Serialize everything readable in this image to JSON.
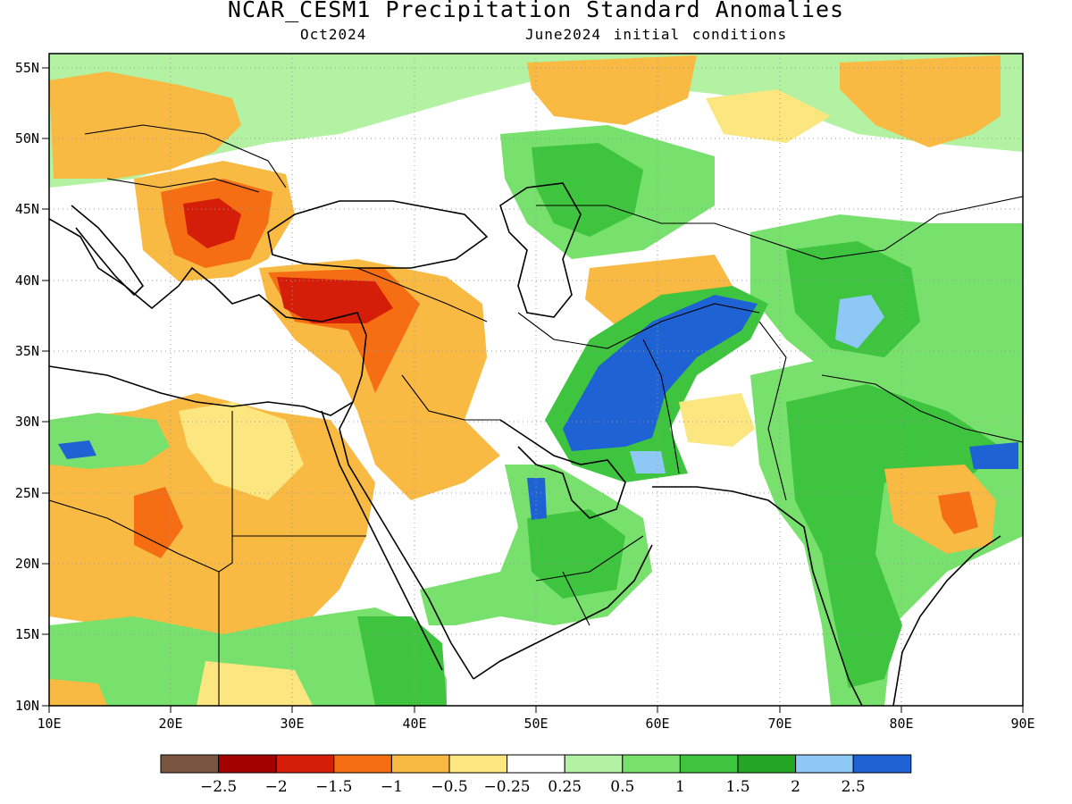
{
  "title": "NCAR_CESM1 Precipitation Standard Anomalies",
  "subtitle_left": "Oct2024",
  "subtitle_right": "June2024 initial conditions",
  "map": {
    "lon_ticks": [
      "10E",
      "20E",
      "30E",
      "40E",
      "50E",
      "60E",
      "70E",
      "80E",
      "90E"
    ],
    "lat_ticks": [
      "10N",
      "15N",
      "20N",
      "25N",
      "30N",
      "35N",
      "40N",
      "45N",
      "50N",
      "55N"
    ],
    "lon_range": [
      10,
      90
    ],
    "lat_range": [
      10,
      56
    ],
    "grid": "dotted",
    "land_base_color": "#ffffff",
    "coast_color": "#000000"
  },
  "colorbar": {
    "colors": [
      "#7a5540",
      "#a50000",
      "#d41e0a",
      "#f56e14",
      "#f9ba43",
      "#fce680",
      "#ffffff",
      "#b2f2a2",
      "#78e06c",
      "#3fc43f",
      "#24a624",
      "#8ec8f5",
      "#1e62d4"
    ],
    "labels": [
      "−2.5",
      "−2",
      "−1.5",
      "−1",
      "−0.5",
      "−0.25",
      "0.25",
      "0.5",
      "1",
      "1.5",
      "2",
      "2.5"
    ]
  }
}
